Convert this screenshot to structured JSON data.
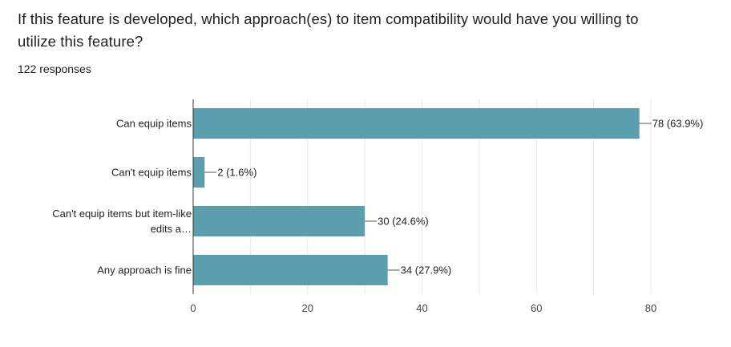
{
  "question": {
    "title": "If this feature is developed, which approach(es) to item compatibility would have you willing to utilize this feature?",
    "responses": "122 responses"
  },
  "colors": {
    "bar": "#5b9fae",
    "grid": "#e8e8e8",
    "axis": "#333333",
    "leader": "#555555"
  },
  "chart_data": {
    "type": "bar",
    "orientation": "horizontal",
    "categories": [
      [
        "Can equip items"
      ],
      [
        "Can't equip items"
      ],
      [
        "Can't equip items but item-like",
        "edits a…"
      ],
      [
        "Any approach is fine"
      ]
    ],
    "values": [
      78,
      2,
      30,
      34
    ],
    "data_labels": [
      "78 (63.9%)",
      "2 (1.6%)",
      "30 (24.6%)",
      "34 (27.9%)"
    ],
    "xlim": [
      0,
      80
    ],
    "xticks": [
      0,
      20,
      40,
      60,
      80
    ],
    "grid": true
  }
}
